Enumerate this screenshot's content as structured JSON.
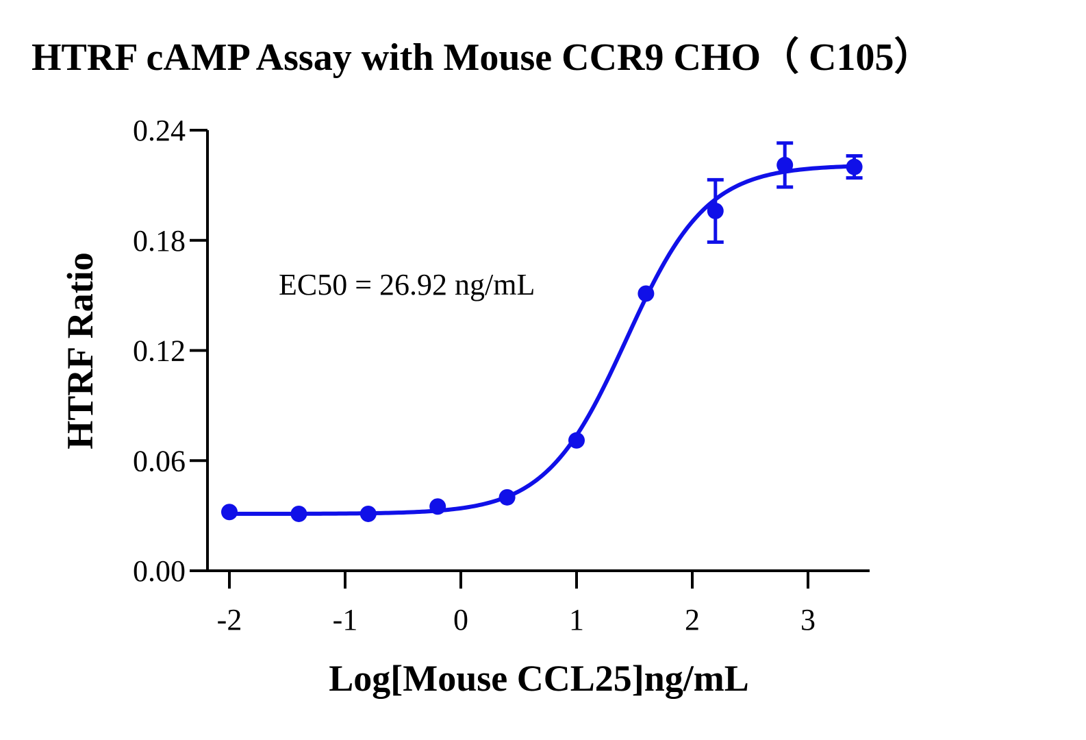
{
  "chart_data": {
    "type": "scatter",
    "title": "HTRF cAMP Assay with Mouse CCR9 CHO（ C105）",
    "xlabel": "Log[Mouse CCL25]ng/mL",
    "ylabel": "HTRF Ratio",
    "annotation": "EC50 = 26.92 ng/mL",
    "xlim": [
      -2.2,
      3.5
    ],
    "ylim": [
      0,
      0.24
    ],
    "x_ticks": [
      -2,
      -1,
      0,
      1,
      2,
      3
    ],
    "x_tick_labels": [
      "-2",
      "-1",
      "0",
      "1",
      "2",
      "3"
    ],
    "y_ticks": [
      0,
      0.06,
      0.12,
      0.18,
      0.24
    ],
    "y_tick_labels": [
      "0.00",
      "0.06",
      "0.12",
      "0.18",
      "0.24"
    ],
    "grid": false,
    "color": "#1010e8",
    "series": [
      {
        "x": [
          -2.0,
          -1.4,
          -0.8,
          -0.2,
          0.4,
          1.0,
          1.6,
          2.2,
          2.8,
          3.4
        ],
        "y": [
          0.032,
          0.031,
          0.031,
          0.035,
          0.04,
          0.071,
          0.151,
          0.196,
          0.221,
          0.22
        ],
        "error": [
          0.0,
          0.0,
          0.0,
          0.0,
          0.0,
          0.0,
          0.0,
          0.017,
          0.012,
          0.006
        ]
      }
    ],
    "fit": {
      "bottom": 0.031,
      "top": 0.221,
      "logEC50": 1.43,
      "hill": 1.25
    }
  }
}
